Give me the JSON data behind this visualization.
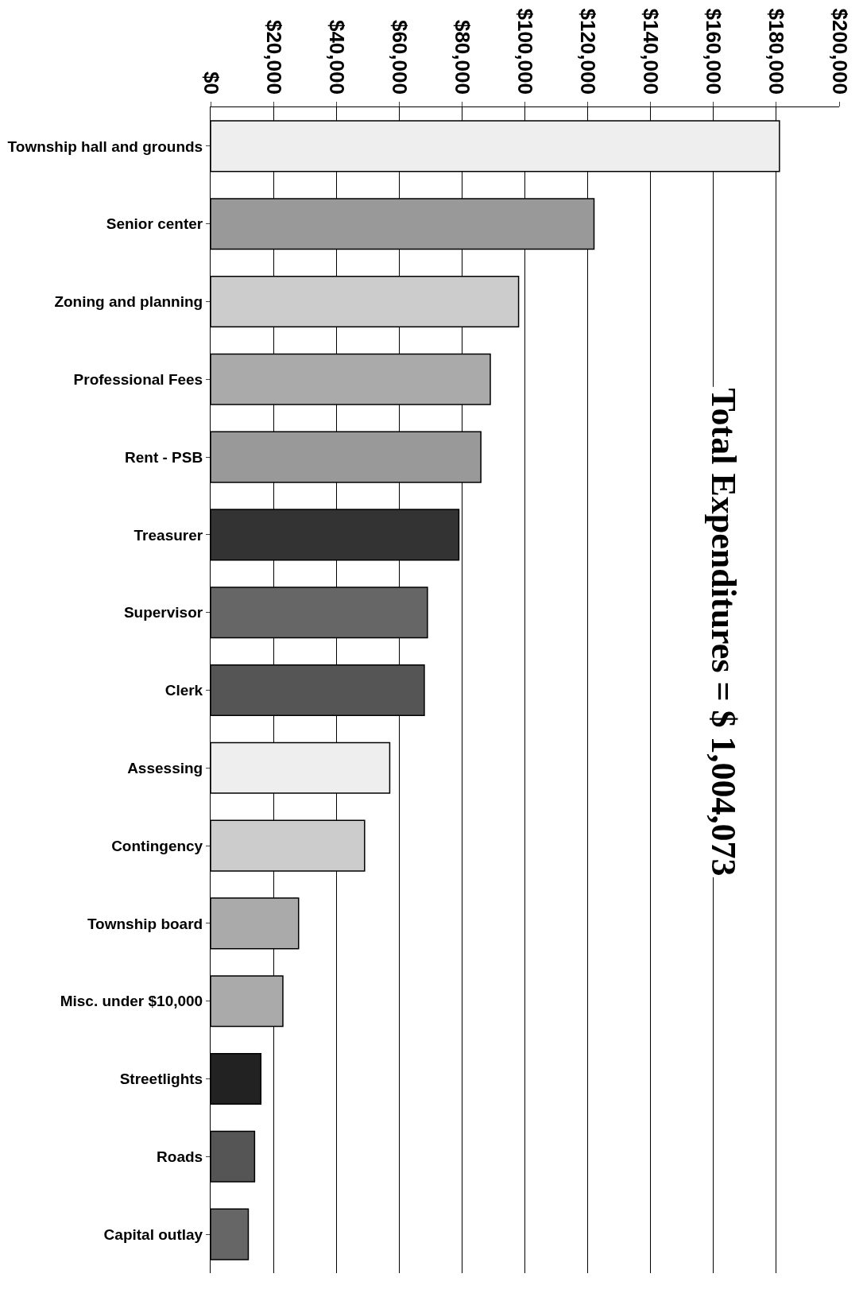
{
  "chart_data": {
    "type": "bar",
    "orientation": "horizontal",
    "categories": [
      "Township hall and grounds",
      "Senior center",
      "Zoning and planning",
      "Professional Fees",
      "Rent - PSB",
      "Treasurer",
      "Supervisor",
      "Clerk",
      "Assessing",
      "Contingency",
      "Township board",
      "Misc. under $10,000",
      "Streetlights",
      "Roads",
      "Capital outlay"
    ],
    "values": [
      181000,
      122000,
      98000,
      89000,
      86000,
      79000,
      69000,
      68000,
      57000,
      49000,
      28000,
      23000,
      16000,
      14000,
      12000
    ],
    "colors": [
      "#eeeeee",
      "#999999",
      "#cccccc",
      "#aaaaaa",
      "#999999",
      "#333333",
      "#666666",
      "#555555",
      "#eeeeee",
      "#cccccc",
      "#aaaaaa",
      "#aaaaaa",
      "#222222",
      "#555555",
      "#666666"
    ],
    "xlim": [
      0,
      200000
    ],
    "xticks": [
      {
        "value": 0,
        "label": "$0"
      },
      {
        "value": 20000,
        "label": "$20,000"
      },
      {
        "value": 40000,
        "label": "$40,000"
      },
      {
        "value": 60000,
        "label": "$60,000"
      },
      {
        "value": 80000,
        "label": "$80,000"
      },
      {
        "value": 100000,
        "label": "$100,000"
      },
      {
        "value": 120000,
        "label": "$120,000"
      },
      {
        "value": 140000,
        "label": "$140,000"
      },
      {
        "value": 160000,
        "label": "$160,000"
      },
      {
        "value": 180000,
        "label": "$180,000"
      },
      {
        "value": 200000,
        "label": "$200,000"
      }
    ],
    "grid": "x",
    "annotations": [
      "Total Expenditures = $ 1,004,073"
    ]
  }
}
